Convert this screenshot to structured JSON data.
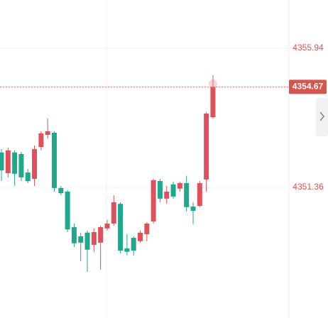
{
  "chart_data": {
    "type": "candlestick",
    "up_color": "#e0505a",
    "down_color": "#1fa88c",
    "ylim": [
      4347.06,
      4357.53
    ],
    "yticks": [
      4355.94,
      4351.36
    ],
    "grid": true,
    "open": [
      4352.51,
      4351.83,
      4352.51,
      4352.46,
      4351.85,
      4351.64,
      4352.69,
      4353.09,
      4353.16,
      4351.34,
      4351.22,
      4350.05,
      4349.75,
      4349.87,
      4349.47,
      4349.54,
      4350.01,
      4350.17,
      4350.82,
      4349.35,
      4349.7,
      4349.59,
      4349.82,
      4350.24,
      4351.57,
      4350.99,
      4351.46,
      4351.32,
      4351.5,
      4350.73,
      4350.75,
      4351.62,
      4353.67
    ],
    "high": [
      4352.62,
      4352.67,
      4352.58,
      4352.53,
      4351.97,
      4352.74,
      4353.21,
      4353.63,
      4353.21,
      4351.41,
      4351.27,
      4350.17,
      4349.87,
      4349.94,
      4350.01,
      4350.1,
      4350.29,
      4351.1,
      4350.87,
      4349.82,
      4349.75,
      4349.94,
      4350.22,
      4351.64,
      4351.64,
      4351.41,
      4351.55,
      4351.55,
      4351.74,
      4350.87,
      4351.57,
      4353.84,
      4355.05
    ],
    "low": [
      4351.57,
      4351.69,
      4351.41,
      4351.57,
      4351.5,
      4351.41,
      4352.58,
      4352.97,
      4351.22,
      4351.1,
      4349.89,
      4349.4,
      4348.93,
      4348.58,
      4349.24,
      4348.65,
      4349.94,
      4350.1,
      4349.19,
      4349.12,
      4349.12,
      4349.54,
      4349.59,
      4350.17,
      4350.87,
      4350.82,
      4350.99,
      4351.22,
      4350.57,
      4350.15,
      4350.71,
      4351.22,
      4353.63
    ],
    "close": [
      4351.92,
      4352.58,
      4351.81,
      4351.69,
      4351.57,
      4352.62,
      4353.14,
      4353.21,
      4351.34,
      4351.17,
      4349.98,
      4349.52,
      4349.54,
      4349.31,
      4349.89,
      4350.05,
      4350.17,
      4350.87,
      4349.28,
      4349.24,
      4349.28,
      4349.87,
      4350.17,
      4351.6,
      4350.99,
      4351.22,
      4351.06,
      4351.5,
      4350.71,
      4350.59,
      4351.5,
      4353.79,
      4354.67
    ]
  }
}
